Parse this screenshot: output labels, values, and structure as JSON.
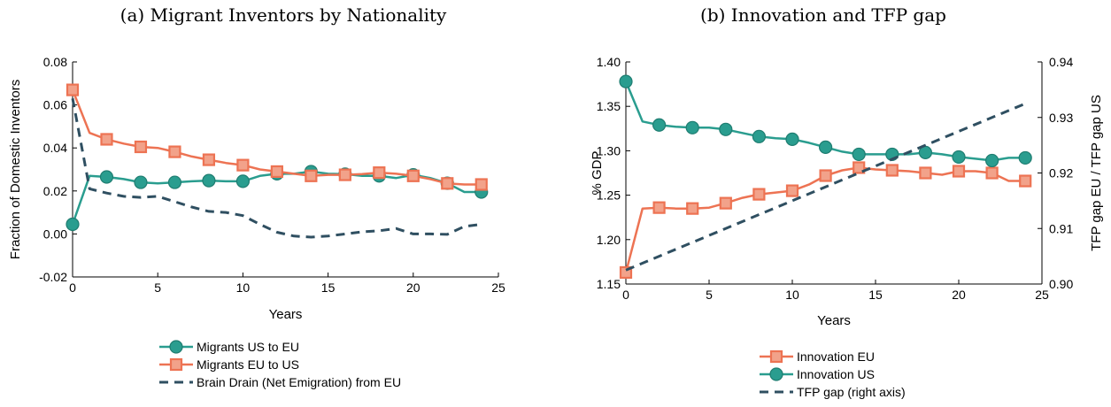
{
  "chart_data": [
    {
      "type": "line",
      "title": "(a) Migrant Inventors by Nationality",
      "xlabel": "Years",
      "ylabel": "Fraction of Domestic Inventors",
      "xlim": [
        0,
        25
      ],
      "ylim": [
        -0.02,
        0.08
      ],
      "xticks": [
        "0",
        "5",
        "10",
        "15",
        "20",
        "25"
      ],
      "yticks": [
        "-0.02",
        "0.00",
        "0.02",
        "0.04",
        "0.06",
        "0.08"
      ],
      "grid": false,
      "legend": "below",
      "series": [
        {
          "name": "Migrants US to EU",
          "color": "#2a9d8f",
          "marker": "circle",
          "dash": false,
          "x": [
            0,
            1,
            2,
            3,
            4,
            5,
            6,
            7,
            8,
            9,
            10,
            11,
            12,
            13,
            14,
            15,
            16,
            17,
            18,
            19,
            20,
            21,
            22,
            23,
            24
          ],
          "y": [
            0.0045,
            0.027,
            0.0265,
            0.0255,
            0.024,
            0.0235,
            0.024,
            0.0245,
            0.0248,
            0.0245,
            0.0245,
            0.027,
            0.028,
            0.028,
            0.029,
            0.028,
            0.0278,
            0.027,
            0.027,
            0.026,
            0.0275,
            0.026,
            0.0236,
            0.0195,
            0.0195
          ],
          "markers_at": [
            0,
            2,
            4,
            6,
            8,
            10,
            12,
            14,
            16,
            18,
            20,
            22,
            24
          ]
        },
        {
          "name": "Migrants EU to US",
          "color": "#ed7353",
          "marker": "square",
          "dash": false,
          "x": [
            0,
            1,
            2,
            3,
            4,
            5,
            6,
            7,
            8,
            9,
            10,
            11,
            12,
            13,
            14,
            15,
            16,
            17,
            18,
            19,
            20,
            21,
            22,
            23,
            24
          ],
          "y": [
            0.067,
            0.047,
            0.044,
            0.042,
            0.0405,
            0.04,
            0.0382,
            0.036,
            0.0345,
            0.033,
            0.032,
            0.03,
            0.029,
            0.028,
            0.027,
            0.0275,
            0.0275,
            0.0278,
            0.0285,
            0.028,
            0.027,
            0.0255,
            0.0235,
            0.023,
            0.023
          ],
          "markers_at": [
            0,
            2,
            4,
            6,
            8,
            10,
            12,
            14,
            16,
            18,
            20,
            22,
            24
          ]
        },
        {
          "name": "Brain Drain (Net Emigration) from EU",
          "color": "#2f4f61",
          "marker": "none",
          "dash": true,
          "x": [
            0,
            1,
            2,
            3,
            4,
            5,
            6,
            7,
            8,
            9,
            10,
            11,
            12,
            13,
            14,
            15,
            16,
            17,
            18,
            19,
            20,
            21,
            22,
            23,
            24
          ],
          "y": [
            0.063,
            0.021,
            0.019,
            0.0175,
            0.017,
            0.0175,
            0.015,
            0.0125,
            0.0105,
            0.01,
            0.0085,
            0.0045,
            0.0008,
            -0.001,
            -0.0015,
            -0.001,
            0.0,
            0.001,
            0.0015,
            0.0025,
            0.0,
            0.0,
            -0.0002,
            0.0035,
            0.0045
          ],
          "markers_at": []
        }
      ]
    },
    {
      "type": "line",
      "title": "(b) Innovation and TFP gap",
      "xlabel": "Years",
      "ylabel": "% GDP",
      "y2label": "TFP gap EU / TFP gap US",
      "xlim": [
        0,
        25
      ],
      "ylim": [
        1.15,
        1.4
      ],
      "y2lim": [
        0.9,
        0.94
      ],
      "xticks": [
        "0",
        "5",
        "10",
        "15",
        "20",
        "25"
      ],
      "yticks": [
        "1.15",
        "1.20",
        "1.25",
        "1.30",
        "1.35",
        "1.40"
      ],
      "y2ticks": [
        "0.90",
        "0.91",
        "0.92",
        "0.93",
        "0.94"
      ],
      "grid": false,
      "legend": "below",
      "series": [
        {
          "name": "Innovation EU",
          "color": "#ed7353",
          "marker": "square",
          "dash": false,
          "axis": "left",
          "x": [
            0,
            1,
            2,
            3,
            4,
            5,
            6,
            7,
            8,
            9,
            10,
            11,
            12,
            13,
            14,
            15,
            16,
            17,
            18,
            19,
            20,
            21,
            22,
            23,
            24
          ],
          "y": [
            1.163,
            1.235,
            1.236,
            1.235,
            1.235,
            1.236,
            1.241,
            1.247,
            1.251,
            1.253,
            1.255,
            1.262,
            1.272,
            1.278,
            1.281,
            1.279,
            1.278,
            1.277,
            1.275,
            1.273,
            1.277,
            1.277,
            1.275,
            1.266,
            1.266
          ],
          "markers_at": [
            0,
            2,
            4,
            6,
            8,
            10,
            12,
            14,
            16,
            18,
            20,
            22,
            24
          ]
        },
        {
          "name": "Innovation US",
          "color": "#2a9d8f",
          "marker": "circle",
          "dash": false,
          "axis": "left",
          "x": [
            0,
            1,
            2,
            3,
            4,
            5,
            6,
            7,
            8,
            9,
            10,
            11,
            12,
            13,
            14,
            15,
            16,
            17,
            18,
            19,
            20,
            21,
            22,
            23,
            24
          ],
          "y": [
            1.378,
            1.333,
            1.329,
            1.327,
            1.326,
            1.326,
            1.324,
            1.32,
            1.316,
            1.314,
            1.313,
            1.309,
            1.304,
            1.299,
            1.296,
            1.296,
            1.296,
            1.296,
            1.298,
            1.296,
            1.293,
            1.291,
            1.289,
            1.292,
            1.292
          ],
          "markers_at": [
            0,
            2,
            4,
            6,
            8,
            10,
            12,
            14,
            16,
            18,
            20,
            22,
            24
          ]
        },
        {
          "name": "TFP gap (right axis)",
          "color": "#2f4f61",
          "marker": "none",
          "dash": true,
          "axis": "right",
          "x": [
            0,
            24
          ],
          "y": [
            0.9025,
            0.9325
          ],
          "markers_at": []
        }
      ]
    }
  ]
}
